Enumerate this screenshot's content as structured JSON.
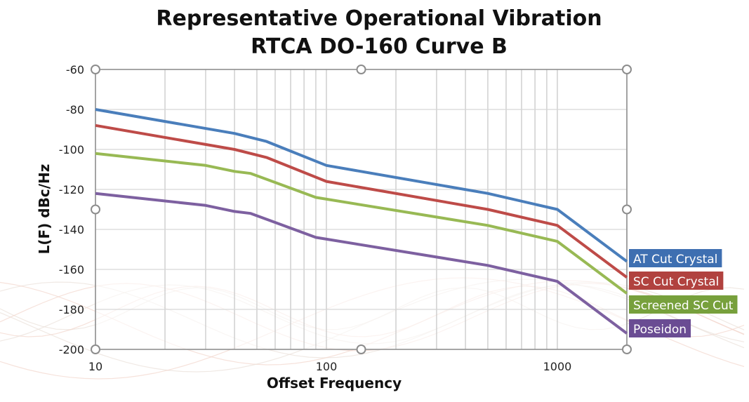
{
  "chart_data": {
    "type": "line",
    "title": [
      "Representative Operational Vibration",
      "RTCA DO-160 Curve B"
    ],
    "xlabel": "Offset Frequency",
    "ylabel": "L(F) dBc/Hz",
    "xscale": "log",
    "xlim": [
      10,
      2000
    ],
    "ylim": [
      -200,
      -60
    ],
    "xticks": [
      10,
      100,
      1000
    ],
    "xtick_labels": [
      "10",
      "100",
      "1000"
    ],
    "yticks": [
      -60,
      -80,
      -100,
      -120,
      -140,
      -160,
      -180,
      -200
    ],
    "ytick_labels": [
      "-60",
      "-80",
      "-100",
      "-120",
      "-140",
      "-160",
      "-180",
      "-200"
    ],
    "grid": true,
    "legend": "right (labels at line ends)",
    "series": [
      {
        "name": "AT Cut Crystal",
        "color": "#4a7ebb",
        "label_bg": "#3e6fb1",
        "x": [
          10,
          40,
          55,
          100,
          500,
          1000,
          2000
        ],
        "y": [
          -80,
          -92,
          -96,
          -108,
          -122,
          -130,
          -156
        ]
      },
      {
        "name": "SC Cut Crystal",
        "color": "#be4b48",
        "label_bg": "#b1423f",
        "x": [
          10,
          40,
          55,
          100,
          500,
          1000,
          2000
        ],
        "y": [
          -88,
          -100,
          -104,
          -116,
          -130,
          -138,
          -164
        ]
      },
      {
        "name": "Screened SC Cut",
        "color": "#98b954",
        "label_bg": "#77a03c",
        "x": [
          10,
          30,
          40,
          47,
          90,
          500,
          1000,
          2000
        ],
        "y": [
          -102,
          -108,
          -111,
          -112,
          -124,
          -138,
          -146,
          -172
        ]
      },
      {
        "name": "Poseidon",
        "color": "#7d60a0",
        "label_bg": "#6a4c93",
        "x": [
          10,
          30,
          40,
          47,
          90,
          500,
          1000,
          2000
        ],
        "y": [
          -122,
          -128,
          -131,
          -132,
          -144,
          -158,
          -166,
          -192
        ]
      }
    ]
  }
}
